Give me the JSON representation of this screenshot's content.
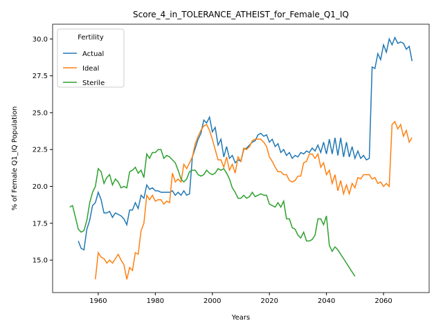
{
  "chart_data": {
    "type": "line",
    "title": "Score_4_in_TOLERANCE_ATHEIST_for_Female_Q1_IQ",
    "xlabel": "Years",
    "ylabel": "% of Female Q1_IQ Population",
    "legend_title": "Fertility",
    "legend": "upper left",
    "x": [
      1950,
      1951,
      1952,
      1953,
      1954,
      1955,
      1956,
      1957,
      1958,
      1959,
      1960,
      1961,
      1962,
      1963,
      1964,
      1965,
      1966,
      1967,
      1968,
      1969,
      1970,
      1971,
      1972,
      1973,
      1974,
      1975,
      1976,
      1977,
      1978,
      1979,
      1980,
      1981,
      1982,
      1983,
      1984,
      1985,
      1986,
      1987,
      1988,
      1989,
      1990,
      1991,
      1992,
      1993,
      1994,
      1995,
      1996,
      1997,
      1998,
      1999,
      2000,
      2001,
      2002,
      2003,
      2004,
      2005,
      2006,
      2007,
      2008,
      2009,
      2010,
      2011,
      2012,
      2013,
      2014,
      2015,
      2016,
      2017,
      2018,
      2019,
      2020,
      2021,
      2022,
      2023,
      2024,
      2025,
      2026,
      2027,
      2028,
      2029,
      2030,
      2031,
      2032,
      2033,
      2034,
      2035,
      2036,
      2037,
      2038,
      2039,
      2040,
      2041,
      2042,
      2043,
      2044,
      2045,
      2046,
      2047,
      2048,
      2049,
      2050,
      2051,
      2052,
      2053,
      2054,
      2055,
      2056,
      2057,
      2058,
      2059,
      2060,
      2061,
      2062,
      2063,
      2064,
      2065,
      2066,
      2067,
      2068,
      2069,
      2070
    ],
    "series": [
      {
        "name": "Actual",
        "color": "#1f77b4",
        "values": [
          null,
          null,
          null,
          16.3,
          15.8,
          15.7,
          17.1,
          17.7,
          18.7,
          18.9,
          19.6,
          19.1,
          18.2,
          18.2,
          18.3,
          17.9,
          18.2,
          18.1,
          18.0,
          17.8,
          17.4,
          18.4,
          18.4,
          18.9,
          18.5,
          19.4,
          19.2,
          20.1,
          19.8,
          19.9,
          19.7,
          19.7,
          19.6,
          19.6,
          19.6,
          19.6,
          19.7,
          19.4,
          19.6,
          19.4,
          19.7,
          19.4,
          19.5,
          22.0,
          22.6,
          23.2,
          23.6,
          24.5,
          24.3,
          24.7,
          23.7,
          24.0,
          22.8,
          23.2,
          22.0,
          22.7,
          21.9,
          22.1,
          21.6,
          21.8,
          21.7,
          22.5,
          22.6,
          22.8,
          23.0,
          23.1,
          23.5,
          23.6,
          23.4,
          23.5,
          23.0,
          23.2,
          22.7,
          22.9,
          22.3,
          22.5,
          22.1,
          22.3,
          21.9,
          22.1,
          22.0,
          22.3,
          22.2,
          22.4,
          22.3,
          22.6,
          22.4,
          22.8,
          22.3,
          23.0,
          22.2,
          23.2,
          22.2,
          23.3,
          22.1,
          23.3,
          22.0,
          23.0,
          22.0,
          22.7,
          21.9,
          22.4,
          21.9,
          22.1,
          21.8,
          21.9,
          28.1,
          28.0,
          29.0,
          28.6,
          29.6,
          29.1,
          30.0,
          29.6,
          30.1,
          29.7,
          29.8,
          29.7,
          29.3,
          29.5,
          28.5
        ]
      },
      {
        "name": "Ideal",
        "color": "#ff7f0e",
        "values": [
          null,
          null,
          null,
          null,
          null,
          null,
          null,
          null,
          null,
          13.7,
          15.5,
          15.2,
          15.1,
          14.8,
          15.0,
          14.8,
          15.1,
          15.4,
          15.0,
          14.7,
          13.7,
          14.5,
          14.3,
          15.5,
          15.4,
          17.0,
          17.5,
          19.4,
          19.1,
          19.4,
          19.0,
          19.1,
          19.1,
          18.8,
          19.0,
          18.9,
          20.9,
          20.3,
          20.5,
          20.3,
          21.5,
          21.2,
          21.6,
          22.0,
          22.9,
          23.4,
          23.8,
          24.1,
          24.2,
          23.8,
          23.2,
          22.5,
          21.8,
          21.8,
          21.3,
          22.0,
          21.1,
          21.5,
          20.9,
          22.0,
          21.7,
          22.6,
          22.5,
          22.7,
          23.1,
          23.2,
          23.2,
          23.2,
          23.0,
          22.7,
          22.0,
          21.7,
          21.3,
          21.0,
          21.0,
          20.8,
          20.8,
          20.4,
          20.3,
          20.4,
          20.7,
          20.7,
          21.6,
          21.7,
          22.2,
          22.2,
          21.9,
          22.2,
          21.3,
          21.6,
          20.8,
          21.1,
          20.2,
          20.8,
          19.7,
          20.4,
          19.5,
          20.1,
          19.5,
          20.2,
          19.9,
          20.6,
          20.5,
          20.8,
          20.8,
          20.8,
          20.5,
          20.6,
          20.2,
          20.3,
          20.0,
          20.2,
          20.0,
          24.2,
          24.4,
          23.9,
          24.2,
          23.4,
          23.8,
          23.0,
          23.3
        ]
      },
      {
        "name": "Sterile",
        "color": "#2ca02c",
        "values": [
          18.6,
          18.7,
          17.9,
          17.1,
          16.9,
          17.0,
          17.7,
          18.9,
          19.6,
          20.0,
          21.2,
          21.0,
          20.2,
          20.6,
          20.8,
          20.1,
          20.5,
          20.3,
          19.9,
          20.0,
          19.9,
          21.0,
          21.1,
          21.3,
          20.9,
          21.1,
          20.6,
          22.2,
          21.9,
          22.3,
          22.3,
          22.5,
          22.5,
          21.9,
          22.1,
          22.0,
          21.8,
          21.6,
          21.1,
          20.5,
          20.3,
          20.5,
          21.0,
          21.1,
          21.1,
          20.8,
          20.7,
          20.8,
          21.1,
          20.9,
          20.8,
          20.9,
          21.2,
          21.1,
          21.2,
          20.9,
          20.5,
          19.9,
          19.6,
          19.2,
          19.2,
          19.4,
          19.2,
          19.3,
          19.6,
          19.3,
          19.4,
          19.5,
          19.4,
          19.4,
          18.8,
          18.7,
          18.6,
          18.9,
          18.6,
          19.0,
          17.8,
          17.8,
          17.2,
          17.1,
          16.7,
          16.5,
          16.9,
          16.3,
          16.3,
          16.4,
          16.7,
          17.8,
          17.8,
          17.4,
          18.0,
          16.0,
          15.6,
          15.9,
          15.7,
          15.4,
          15.1,
          14.8,
          14.5,
          14.2,
          13.9,
          null,
          null,
          null,
          null,
          null,
          null,
          null,
          null,
          null,
          null,
          null,
          null,
          null,
          null,
          null,
          null,
          null,
          null,
          null,
          null
        ]
      }
    ],
    "xlim": [
      1944,
      2076
    ],
    "xticks": [
      1960,
      1980,
      2000,
      2020,
      2040,
      2060
    ],
    "ylim": [
      12.8,
      31.0
    ],
    "yticks": [
      {
        "value": 15,
        "label": "15.0"
      },
      {
        "value": 17.5,
        "label": "17.5"
      },
      {
        "value": 20,
        "label": "20.0"
      },
      {
        "value": 22.5,
        "label": "22.5"
      },
      {
        "value": 25,
        "label": "25.0"
      },
      {
        "value": 27.5,
        "label": "27.5"
      },
      {
        "value": 30,
        "label": "30.0"
      }
    ],
    "grid": false
  }
}
